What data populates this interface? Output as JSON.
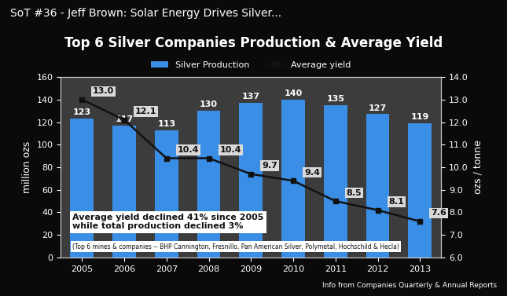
{
  "video_title": "SoT #36 - Jeff Brown: Solar Energy Drives Silver...",
  "chart_data": {
    "type": "bar",
    "title": "Top 6 Silver Companies Production & Average Yield",
    "categories": [
      "2005",
      "2006",
      "2007",
      "2008",
      "2009",
      "2010",
      "2011",
      "2012",
      "2013"
    ],
    "series": [
      {
        "name": "Silver Production",
        "type": "bar",
        "color": "#3a8ee6",
        "values": [
          123,
          117,
          113,
          130,
          137,
          140,
          135,
          127,
          119
        ],
        "data_labels": true
      },
      {
        "name": "Average yield",
        "type": "line",
        "axis": "y2",
        "color": "#111111",
        "marker": "square",
        "line_style": "solid",
        "values": [
          13.0,
          12.1,
          10.4,
          10.4,
          9.7,
          9.4,
          8.5,
          8.1,
          7.6
        ],
        "value_labels": [
          "13.0",
          "12.1",
          "10.4",
          "10.4",
          "9.7",
          "9.4",
          "8.5",
          "8.1",
          "7.6"
        ],
        "data_labels": true
      }
    ],
    "ylabel": "million ozs",
    "y2label": "ozs / tonne",
    "ylim": [
      0,
      160
    ],
    "yticks": [
      0,
      20,
      40,
      60,
      80,
      100,
      120,
      140,
      160
    ],
    "y2lim": [
      6,
      14
    ],
    "y2ticks": [
      {
        "value": 6,
        "label": "6.0"
      },
      {
        "value": 7,
        "label": "7.0"
      },
      {
        "value": 8,
        "label": "8.0"
      },
      {
        "value": 9,
        "label": "9.0"
      },
      {
        "value": 10,
        "label": "10.0"
      },
      {
        "value": 11,
        "label": "11.0"
      },
      {
        "value": 12,
        "label": "12.0"
      },
      {
        "value": 13,
        "label": "13.0"
      },
      {
        "value": 14,
        "label": "14.0"
      }
    ],
    "legend": "upper center",
    "annotations": [
      "Average yield declined 41% since 2005",
      "while total production declined 3%",
      "(Top 6 mines & companies -- BHP Cannington, Fresnillo, Pan American Silver, Polymetal, Hochschild & Hecla)"
    ],
    "source": "Info from Companies Quarterly & Annual Reports"
  }
}
